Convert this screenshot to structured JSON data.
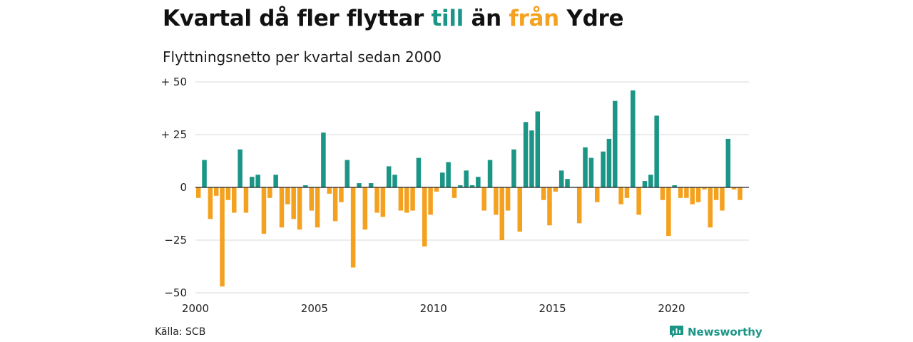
{
  "title": {
    "part1": "Kvartal då fler flyttar ",
    "positive_word": "till",
    "part2": " än ",
    "negative_word": "från",
    "part3": " Ydre"
  },
  "subtitle": "Flyttningsnetto per kvartal sedan 2000",
  "source": "Källa: SCB",
  "brand": "Newsworthy",
  "colors": {
    "positive": "#1a9586",
    "negative": "#f4a11f",
    "grid": "#d9d9d9",
    "zero": "#222222"
  },
  "chart_data": {
    "type": "bar",
    "start": "2000-Q1",
    "xlim": [
      2000,
      2023.25
    ],
    "ylim": [
      -50,
      50
    ],
    "y_ticks": [
      50,
      25,
      0,
      -25,
      -50
    ],
    "y_tick_labels": [
      "+ 50",
      "+ 25",
      "0",
      "−25",
      "−50"
    ],
    "x_ticks": [
      2000,
      2005,
      2010,
      2015,
      2020
    ],
    "x_tick_labels": [
      "2000",
      "2005",
      "2010",
      "2015",
      "2020"
    ],
    "grid": true,
    "values": [
      -5,
      13,
      -15,
      -4,
      -47,
      -6,
      -12,
      18,
      -12,
      5,
      6,
      -22,
      -5,
      6,
      -19,
      -8,
      -15,
      -20,
      1,
      -11,
      -19,
      26,
      -3,
      -16,
      -7,
      13,
      -38,
      2,
      -20,
      2,
      -12,
      -14,
      10,
      6,
      -11,
      -12,
      -11,
      14,
      -28,
      -13,
      -2,
      7,
      12,
      -5,
      1,
      8,
      1,
      5,
      -11,
      13,
      -13,
      -25,
      -11,
      18,
      -21,
      31,
      27,
      36,
      -6,
      -18,
      -2,
      8,
      4,
      0,
      -17,
      19,
      14,
      -7,
      17,
      23,
      41,
      -8,
      -5,
      46,
      -13,
      3,
      6,
      34,
      -6,
      -23,
      1,
      -5,
      -5,
      -8,
      -7,
      -1,
      -19,
      -6,
      -11,
      23,
      -1,
      -6
    ]
  }
}
